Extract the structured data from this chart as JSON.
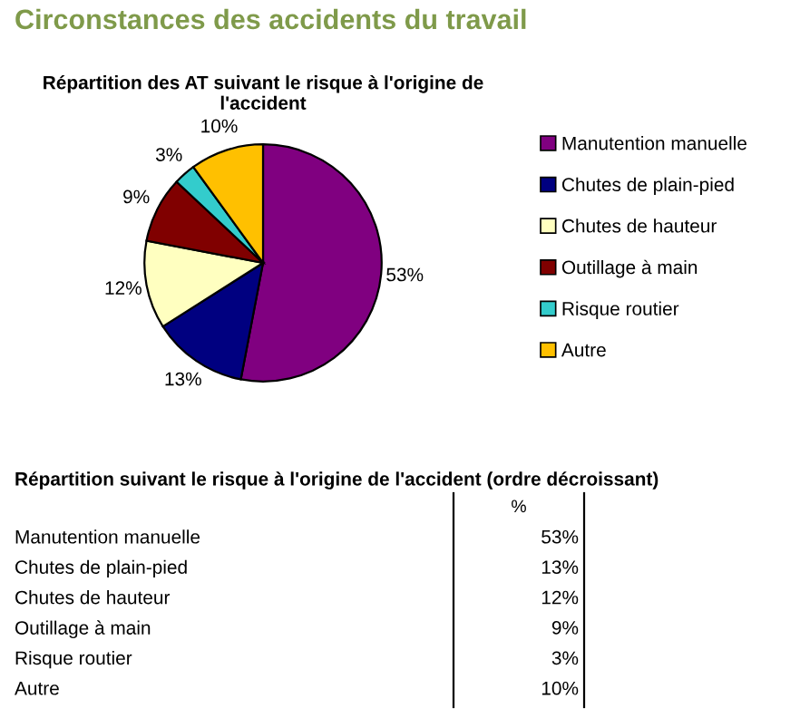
{
  "chart_data": [
    {
      "type": "pie",
      "title": "Circonstances des accidents du travail",
      "subtitle": "Répartition des AT suivant le risque à l'origine de l'accident",
      "categories": [
        "Manutention manuelle",
        "Chutes de plain-pied",
        "Chutes de hauteur",
        "Outillage à main",
        "Risque routier",
        "Autre"
      ],
      "values": [
        53,
        13,
        12,
        9,
        3,
        10
      ],
      "value_labels": [
        "53%",
        "13%",
        "12%",
        "9%",
        "3%",
        "10%"
      ],
      "colors": [
        "#800080",
        "#000080",
        "#ffffc0",
        "#800000",
        "#33cccc",
        "#ffc000"
      ],
      "legend": "right"
    },
    {
      "type": "other",
      "title": "Répartition suivant le risque à l'origine de l'accident (ordre décroissant)",
      "categories": [
        "Manutention manuelle",
        "Chutes de plain-pied",
        "Chutes de hauteur",
        "Outillage à main",
        "Risque routier",
        "Autre"
      ],
      "values": [
        53,
        13,
        12,
        9,
        3,
        10
      ],
      "value_labels": [
        "53%",
        "13%",
        "12%",
        "9%",
        "3%",
        "10%"
      ],
      "annotations": [
        "%"
      ]
    }
  ]
}
